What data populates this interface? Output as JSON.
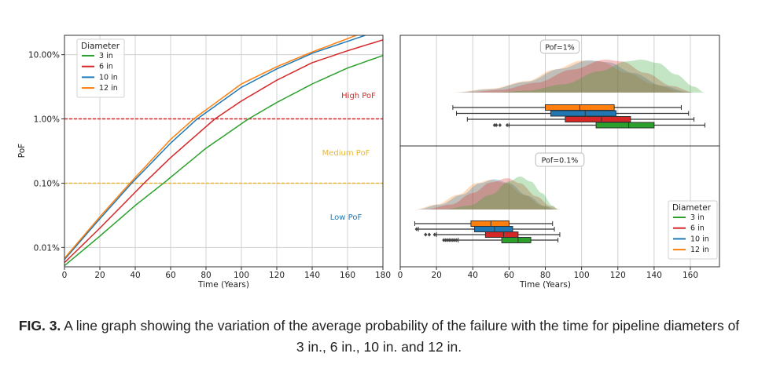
{
  "chart_data": [
    {
      "type": "line",
      "xlabel": "Time (Years)",
      "ylabel": "PoF",
      "xlim": [
        0,
        180
      ],
      "ylim_percent": [
        0.005,
        20
      ],
      "yscale": "log",
      "xticks": [
        0,
        20,
        40,
        60,
        80,
        100,
        120,
        140,
        160,
        180
      ],
      "yticks": [
        {
          "value": 0.01,
          "label": "0.01%"
        },
        {
          "value": 0.1,
          "label": "0.10%"
        },
        {
          "value": 1,
          "label": "1.00%"
        },
        {
          "value": 10,
          "label": "10.00%"
        }
      ],
      "grid": true,
      "legend": {
        "title": "Diameter",
        "placement": "top-left"
      },
      "series": [
        {
          "name": "3 in",
          "color": "#2ca02c",
          "x": [
            0,
            20,
            40,
            56,
            80,
            104,
            120,
            140,
            160,
            180
          ],
          "y": [
            0.0052,
            0.015,
            0.045,
            0.1,
            0.35,
            1,
            1.8,
            3.5,
            6.2,
            9.7
          ]
        },
        {
          "name": "6 in",
          "color": "#d62728",
          "x": [
            0,
            20,
            45,
            60,
            85,
            100,
            120,
            140,
            160,
            180
          ],
          "y": [
            0.0058,
            0.02,
            0.1,
            0.25,
            1,
            1.9,
            4,
            7.5,
            11.5,
            17
          ]
        },
        {
          "name": "10 in",
          "color": "#1f77b4",
          "x": [
            0,
            20,
            38,
            60,
            75,
            100,
            120,
            140,
            170
          ],
          "y": [
            0.0065,
            0.028,
            0.1,
            0.42,
            1,
            3.1,
            6,
            10.5,
            20
          ]
        },
        {
          "name": "12 in",
          "color": "#ff7f0e",
          "x": [
            0,
            20,
            37,
            60,
            73,
            100,
            120,
            140,
            165
          ],
          "y": [
            0.0068,
            0.03,
            0.1,
            0.48,
            1,
            3.5,
            6.5,
            11,
            20
          ]
        }
      ],
      "thresholds": [
        {
          "value": 1,
          "color": "#d62728",
          "style": "dashed"
        },
        {
          "value": 0.1,
          "color": "#e8b830",
          "style": "dashed"
        }
      ],
      "annotations": [
        {
          "text": "High PoF",
          "color": "#d62728"
        },
        {
          "text": "Medium PoF",
          "color": "#e8b830"
        },
        {
          "text": "Low PoF",
          "color": "#1f77b4"
        }
      ]
    },
    {
      "type": "boxplot+density",
      "xlabel": "Time (Years)",
      "xlim": [
        0,
        176
      ],
      "xticks": [
        0,
        20,
        40,
        60,
        80,
        100,
        120,
        140,
        160
      ],
      "grid": true,
      "legend": {
        "title": "Diameter",
        "placement": "bottom-right"
      },
      "panels": [
        {
          "label": "Pof=1%",
          "groups": [
            {
              "name": "12 in",
              "color": "#ff7f0e",
              "whisker": [
                29,
                155
              ],
              "box": [
                80,
                118
              ],
              "median": 99,
              "outliers": [],
              "kde": [
                [
                  29,
                  0
                ],
                [
                  50,
                  0.12
                ],
                [
                  70,
                  0.35
                ],
                [
                  85,
                  0.7
                ],
                [
                  100,
                  0.97
                ],
                [
                  110,
                  0.95
                ],
                [
                  125,
                  0.6
                ],
                [
                  140,
                  0.25
                ],
                [
                  155,
                  0.03
                ],
                [
                  160,
                  0
                ]
              ]
            },
            {
              "name": "10 in",
              "color": "#1f77b4",
              "whisker": [
                31,
                159
              ],
              "box": [
                83,
                119
              ],
              "median": 102,
              "outliers": [],
              "kde": [
                [
                  30,
                  0
                ],
                [
                  50,
                  0.1
                ],
                [
                  70,
                  0.33
                ],
                [
                  88,
                  0.72
                ],
                [
                  104,
                  0.98
                ],
                [
                  115,
                  0.92
                ],
                [
                  128,
                  0.6
                ],
                [
                  145,
                  0.2
                ],
                [
                  158,
                  0.03
                ],
                [
                  162,
                  0
                ]
              ]
            },
            {
              "name": "6 in",
              "color": "#d62728",
              "whisker": [
                37,
                162
              ],
              "box": [
                91,
                127
              ],
              "median": 111,
              "outliers": [],
              "kde": [
                [
                  36,
                  0
                ],
                [
                  55,
                  0.08
                ],
                [
                  75,
                  0.3
                ],
                [
                  95,
                  0.7
                ],
                [
                  113,
                  1
                ],
                [
                  122,
                  0.95
                ],
                [
                  135,
                  0.6
                ],
                [
                  150,
                  0.2
                ],
                [
                  162,
                  0
                ]
              ]
            },
            {
              "name": "3 in",
              "color": "#2ca02c",
              "whisker": [
                60,
                168
              ],
              "box": [
                108,
                140
              ],
              "median": 126,
              "outliers": [
                52,
                53,
                55,
                59
              ],
              "kde": [
                [
                  52,
                  0
                ],
                [
                  70,
                  0.06
                ],
                [
                  90,
                  0.25
                ],
                [
                  110,
                  0.65
                ],
                [
                  125,
                  0.95
                ],
                [
                  133,
                  1
                ],
                [
                  142,
                  0.9
                ],
                [
                  152,
                  0.55
                ],
                [
                  162,
                  0.18
                ],
                [
                  168,
                  0
                ]
              ]
            }
          ]
        },
        {
          "label": "Pof=0.1%",
          "groups": [
            {
              "name": "12 in",
              "color": "#ff7f0e",
              "whisker": [
                8,
                84
              ],
              "box": [
                39,
                60
              ],
              "median": 50,
              "outliers": [],
              "kde": [
                [
                  8,
                  0
                ],
                [
                  20,
                  0.15
                ],
                [
                  32,
                  0.45
                ],
                [
                  42,
                  0.8
                ],
                [
                  50,
                  0.9
                ],
                [
                  58,
                  0.8
                ],
                [
                  68,
                  0.45
                ],
                [
                  78,
                  0.12
                ],
                [
                  85,
                  0
                ]
              ]
            },
            {
              "name": "10 in",
              "color": "#1f77b4",
              "whisker": [
                10,
                85
              ],
              "box": [
                41,
                62
              ],
              "median": 52,
              "outliers": [
                9
              ],
              "kde": [
                [
                  9,
                  0
                ],
                [
                  22,
                  0.15
                ],
                [
                  34,
                  0.45
                ],
                [
                  44,
                  0.8
                ],
                [
                  52,
                  0.92
                ],
                [
                  60,
                  0.8
                ],
                [
                  70,
                  0.42
                ],
                [
                  80,
                  0.1
                ],
                [
                  86,
                  0
                ]
              ]
            },
            {
              "name": "6 in",
              "color": "#d62728",
              "whisker": [
                20,
                88
              ],
              "box": [
                47,
                65
              ],
              "median": 57,
              "outliers": [
                14,
                16,
                19
              ],
              "kde": [
                [
                  14,
                  0
                ],
                [
                  28,
                  0.15
                ],
                [
                  40,
                  0.5
                ],
                [
                  50,
                  0.82
                ],
                [
                  59,
                  0.95
                ],
                [
                  66,
                  0.8
                ],
                [
                  75,
                  0.4
                ],
                [
                  83,
                  0.1
                ],
                [
                  88,
                  0
                ]
              ]
            },
            {
              "name": "3 in",
              "color": "#2ca02c",
              "whisker": [
                32,
                87
              ],
              "box": [
                56,
                72
              ],
              "median": 65,
              "outliers": [
                24,
                25,
                26,
                27,
                28,
                29,
                30,
                31
              ],
              "kde": [
                [
                  24,
                  0
                ],
                [
                  38,
                  0.12
                ],
                [
                  50,
                  0.45
                ],
                [
                  60,
                  0.85
                ],
                [
                  66,
                  1
                ],
                [
                  72,
                  0.85
                ],
                [
                  78,
                  0.5
                ],
                [
                  84,
                  0.12
                ],
                [
                  87,
                  0
                ]
              ]
            }
          ]
        }
      ]
    }
  ],
  "caption": {
    "label": "FIG. 3.",
    "text": " A line graph showing the variation of the average probability of the failure with the time for pipeline diameters of 3 in., 6 in., 10 in. and 12 in."
  }
}
